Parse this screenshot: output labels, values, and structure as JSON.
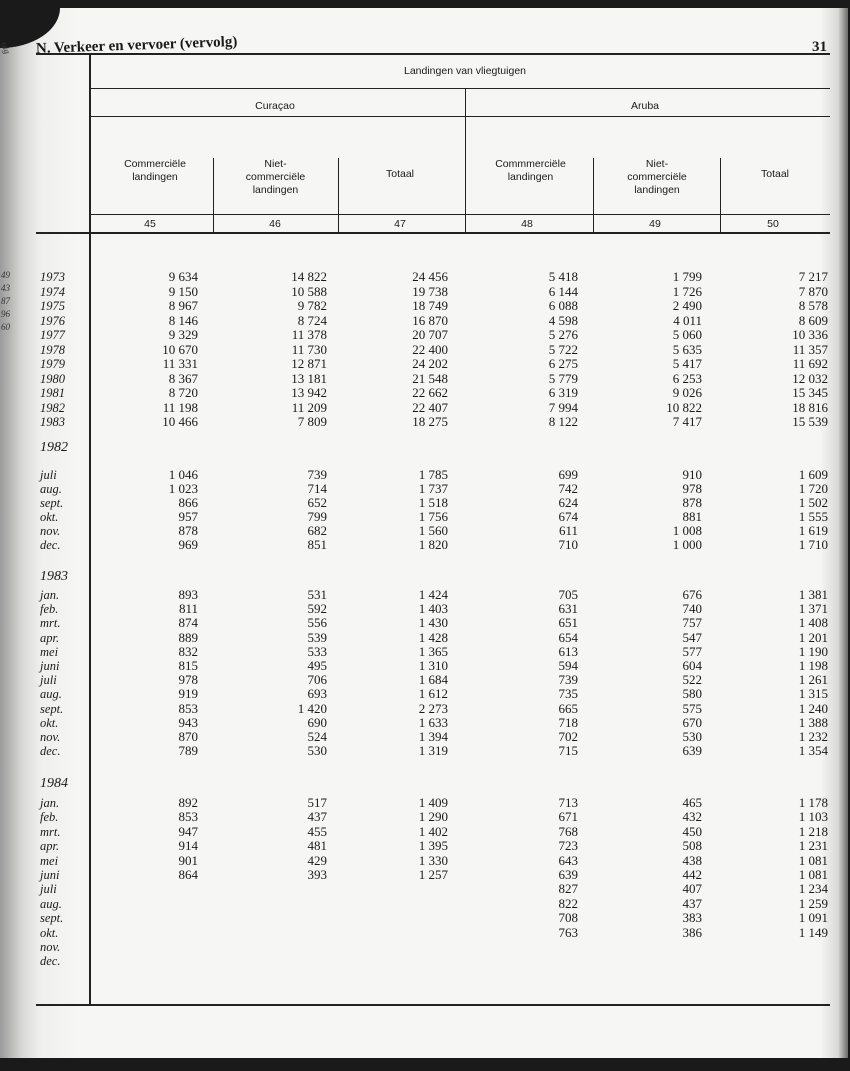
{
  "header": {
    "title": "N. Verkeer en vervoer (vervolg)",
    "page_number": "31"
  },
  "margin_fragments": [
    "olg",
    "49",
    "43",
    "87",
    "96",
    "60"
  ],
  "table": {
    "super_header": "Landingen van vliegtuigen",
    "regions": [
      "Curaçao",
      "Aruba"
    ],
    "columns": [
      {
        "label": "Commerciële landingen",
        "number": "45"
      },
      {
        "label": "Niet-commerciële landingen",
        "number": "46"
      },
      {
        "label": "Totaal",
        "number": "47"
      },
      {
        "label": "Commmerciële landingen",
        "number": "48"
      },
      {
        "label": "Niet-commerciële landingen",
        "number": "49"
      },
      {
        "label": "Totaal",
        "number": "50"
      }
    ],
    "groups": [
      {
        "label": "",
        "rows": [
          {
            "label": "1973",
            "values": [
              "9 634",
              "14 822",
              "24 456",
              "5 418",
              "1 799",
              "7 217"
            ]
          },
          {
            "label": "1974",
            "values": [
              "9 150",
              "10 588",
              "19 738",
              "6 144",
              "1 726",
              "7 870"
            ]
          },
          {
            "label": "1975",
            "values": [
              "8 967",
              "9 782",
              "18 749",
              "6 088",
              "2 490",
              "8 578"
            ]
          },
          {
            "label": "1976",
            "values": [
              "8 146",
              "8 724",
              "16 870",
              "4 598",
              "4 011",
              "8 609"
            ]
          },
          {
            "label": "1977",
            "values": [
              "9 329",
              "11 378",
              "20 707",
              "5 276",
              "5 060",
              "10 336"
            ]
          },
          {
            "label": "1978",
            "values": [
              "10 670",
              "11 730",
              "22 400",
              "5 722",
              "5 635",
              "11 357"
            ]
          },
          {
            "label": "1979",
            "values": [
              "11 331",
              "12 871",
              "24 202",
              "6 275",
              "5 417",
              "11 692"
            ]
          },
          {
            "label": "1980",
            "values": [
              "8 367",
              "13 181",
              "21 548",
              "5 779",
              "6 253",
              "12 032"
            ]
          },
          {
            "label": "1981",
            "values": [
              "8 720",
              "13 942",
              "22 662",
              "6 319",
              "9 026",
              "15 345"
            ]
          },
          {
            "label": "1982",
            "values": [
              "11 198",
              "11 209",
              "22 407",
              "7 994",
              "10 822",
              "18 816"
            ]
          },
          {
            "label": "1983",
            "values": [
              "10 466",
              "7 809",
              "18 275",
              "8 122",
              "7 417",
              "15 539"
            ]
          }
        ]
      },
      {
        "label": "1982",
        "rows": [
          {
            "label": "juli",
            "values": [
              "1 046",
              "739",
              "1 785",
              "699",
              "910",
              "1 609"
            ]
          },
          {
            "label": "aug.",
            "values": [
              "1 023",
              "714",
              "1 737",
              "742",
              "978",
              "1 720"
            ]
          },
          {
            "label": "sept.",
            "values": [
              "866",
              "652",
              "1 518",
              "624",
              "878",
              "1 502"
            ]
          },
          {
            "label": "okt.",
            "values": [
              "957",
              "799",
              "1 756",
              "674",
              "881",
              "1 555"
            ]
          },
          {
            "label": "nov.",
            "values": [
              "878",
              "682",
              "1 560",
              "611",
              "1 008",
              "1 619"
            ]
          },
          {
            "label": "dec.",
            "values": [
              "969",
              "851",
              "1 820",
              "710",
              "1 000",
              "1 710"
            ]
          }
        ]
      },
      {
        "label": "1983",
        "rows": [
          {
            "label": "jan.",
            "values": [
              "893",
              "531",
              "1 424",
              "705",
              "676",
              "1 381"
            ]
          },
          {
            "label": "feb.",
            "values": [
              "811",
              "592",
              "1 403",
              "631",
              "740",
              "1 371"
            ]
          },
          {
            "label": "mrt.",
            "values": [
              "874",
              "556",
              "1 430",
              "651",
              "757",
              "1 408"
            ]
          },
          {
            "label": "apr.",
            "values": [
              "889",
              "539",
              "1 428",
              "654",
              "547",
              "1 201"
            ]
          },
          {
            "label": "mei",
            "values": [
              "832",
              "533",
              "1 365",
              "613",
              "577",
              "1 190"
            ]
          },
          {
            "label": "juni",
            "values": [
              "815",
              "495",
              "1 310",
              "594",
              "604",
              "1 198"
            ]
          },
          {
            "label": "juli",
            "values": [
              "978",
              "706",
              "1 684",
              "739",
              "522",
              "1 261"
            ]
          },
          {
            "label": "aug.",
            "values": [
              "919",
              "693",
              "1 612",
              "735",
              "580",
              "1 315"
            ]
          },
          {
            "label": "sept.",
            "values": [
              "853",
              "1 420",
              "2 273",
              "665",
              "575",
              "1 240"
            ]
          },
          {
            "label": "okt.",
            "values": [
              "943",
              "690",
              "1 633",
              "718",
              "670",
              "1 388"
            ]
          },
          {
            "label": "nov.",
            "values": [
              "870",
              "524",
              "1 394",
              "702",
              "530",
              "1 232"
            ]
          },
          {
            "label": "dec.",
            "values": [
              "789",
              "530",
              "1 319",
              "715",
              "639",
              "1 354"
            ]
          }
        ]
      },
      {
        "label": "1984",
        "rows": [
          {
            "label": "jan.",
            "values": [
              "892",
              "517",
              "1 409",
              "713",
              "465",
              "1 178"
            ]
          },
          {
            "label": "feb.",
            "values": [
              "853",
              "437",
              "1 290",
              "671",
              "432",
              "1 103"
            ]
          },
          {
            "label": "mrt.",
            "values": [
              "947",
              "455",
              "1 402",
              "768",
              "450",
              "1 218"
            ]
          },
          {
            "label": "apr.",
            "values": [
              "914",
              "481",
              "1 395",
              "723",
              "508",
              "1 231"
            ]
          },
          {
            "label": "mei",
            "values": [
              "901",
              "429",
              "1 330",
              "643",
              "438",
              "1 081"
            ]
          },
          {
            "label": "juni",
            "values": [
              "864",
              "393",
              "1 257",
              "639",
              "442",
              "1 081"
            ]
          },
          {
            "label": "juli",
            "values": [
              "",
              "",
              "",
              "827",
              "407",
              "1 234"
            ]
          },
          {
            "label": "aug.",
            "values": [
              "",
              "",
              "",
              "822",
              "437",
              "1 259"
            ]
          },
          {
            "label": "sept.",
            "values": [
              "",
              "",
              "",
              "708",
              "383",
              "1 091"
            ]
          },
          {
            "label": "okt.",
            "values": [
              "",
              "",
              "",
              "763",
              "386",
              "1 149"
            ]
          },
          {
            "label": "nov.",
            "values": [
              "",
              "",
              "",
              "",
              "",
              ""
            ]
          },
          {
            "label": "dec.",
            "values": [
              "",
              "",
              "",
              "",
              "",
              ""
            ]
          }
        ]
      }
    ]
  }
}
